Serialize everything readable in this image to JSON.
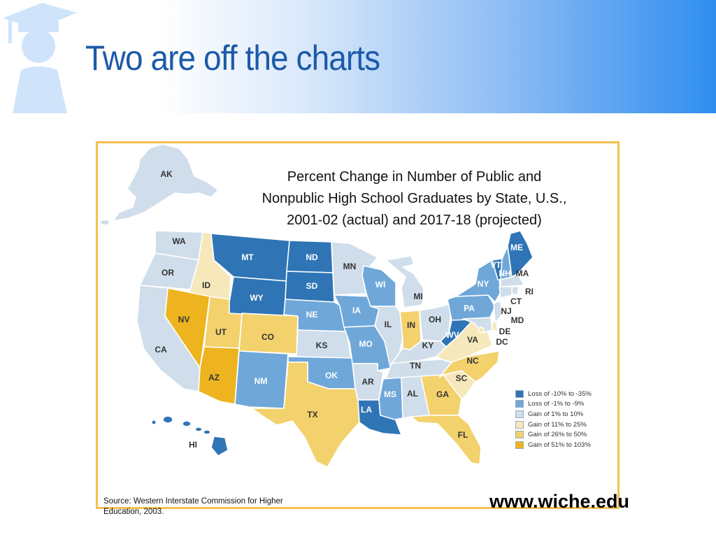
{
  "slide": {
    "title": "Two are off the charts",
    "url": "www.wiche.edu",
    "source": "Source: Western Interstate Commission for Higher Education, 2003."
  },
  "map": {
    "title_lines": [
      "Percent Change in Number of Public and",
      "Nonpublic High School Graduates by State, U.S.,",
      "2001-02 (actual) and 2017-18 (projected)"
    ],
    "legend": [
      {
        "label": "Loss of -10% to -35%",
        "color": "#2f75b5"
      },
      {
        "label": "Loss of -1% to -9%",
        "color": "#6fa7d9"
      },
      {
        "label": "Gain of 1% to 10%",
        "color": "#cfdeea"
      },
      {
        "label": "Gain of 11% to 25%",
        "color": "#f6e8bb"
      },
      {
        "label": "Gain of 26% to 50%",
        "color": "#f3d16c"
      },
      {
        "label": "Gain of 51% to 103%",
        "color": "#eeb41f"
      }
    ],
    "states": [
      {
        "abbr": "AK",
        "category": 2
      },
      {
        "abbr": "WA",
        "category": 2
      },
      {
        "abbr": "OR",
        "category": 2
      },
      {
        "abbr": "CA",
        "category": 2
      },
      {
        "abbr": "ID",
        "category": 3
      },
      {
        "abbr": "NV",
        "category": 5
      },
      {
        "abbr": "UT",
        "category": 4
      },
      {
        "abbr": "AZ",
        "category": 5
      },
      {
        "abbr": "MT",
        "category": 0
      },
      {
        "abbr": "WY",
        "category": 0
      },
      {
        "abbr": "CO",
        "category": 4
      },
      {
        "abbr": "NM",
        "category": 1
      },
      {
        "abbr": "ND",
        "category": 0
      },
      {
        "abbr": "SD",
        "category": 0
      },
      {
        "abbr": "NE",
        "category": 1
      },
      {
        "abbr": "KS",
        "category": 2
      },
      {
        "abbr": "OK",
        "category": 1
      },
      {
        "abbr": "TX",
        "category": 4
      },
      {
        "abbr": "MN",
        "category": 2
      },
      {
        "abbr": "IA",
        "category": 1
      },
      {
        "abbr": "MO",
        "category": 1
      },
      {
        "abbr": "AR",
        "category": 2
      },
      {
        "abbr": "LA",
        "category": 0
      },
      {
        "abbr": "WI",
        "category": 1
      },
      {
        "abbr": "IL",
        "category": 2
      },
      {
        "abbr": "MI",
        "category": 2
      },
      {
        "abbr": "IN",
        "category": 4
      },
      {
        "abbr": "OH",
        "category": 2
      },
      {
        "abbr": "KY",
        "category": 2
      },
      {
        "abbr": "TN",
        "category": 2
      },
      {
        "abbr": "MS",
        "category": 1
      },
      {
        "abbr": "AL",
        "category": 2
      },
      {
        "abbr": "GA",
        "category": 4
      },
      {
        "abbr": "FL",
        "category": 4
      },
      {
        "abbr": "SC",
        "category": 3
      },
      {
        "abbr": "NC",
        "category": 4
      },
      {
        "abbr": "VA",
        "category": 3
      },
      {
        "abbr": "WV",
        "category": 0
      },
      {
        "abbr": "PA",
        "category": 1
      },
      {
        "abbr": "NY",
        "category": 1
      },
      {
        "abbr": "VT",
        "category": 0
      },
      {
        "abbr": "NH",
        "category": 1
      },
      {
        "abbr": "ME",
        "category": 0
      },
      {
        "abbr": "MA",
        "category": 2
      },
      {
        "abbr": "RI",
        "category": 2
      },
      {
        "abbr": "CT",
        "category": 2
      },
      {
        "abbr": "NJ",
        "category": 2
      },
      {
        "abbr": "DE",
        "category": 3
      },
      {
        "abbr": "MD",
        "category": 2
      },
      {
        "abbr": "DC",
        "category": 3
      },
      {
        "abbr": "HI",
        "category": 0
      }
    ]
  }
}
